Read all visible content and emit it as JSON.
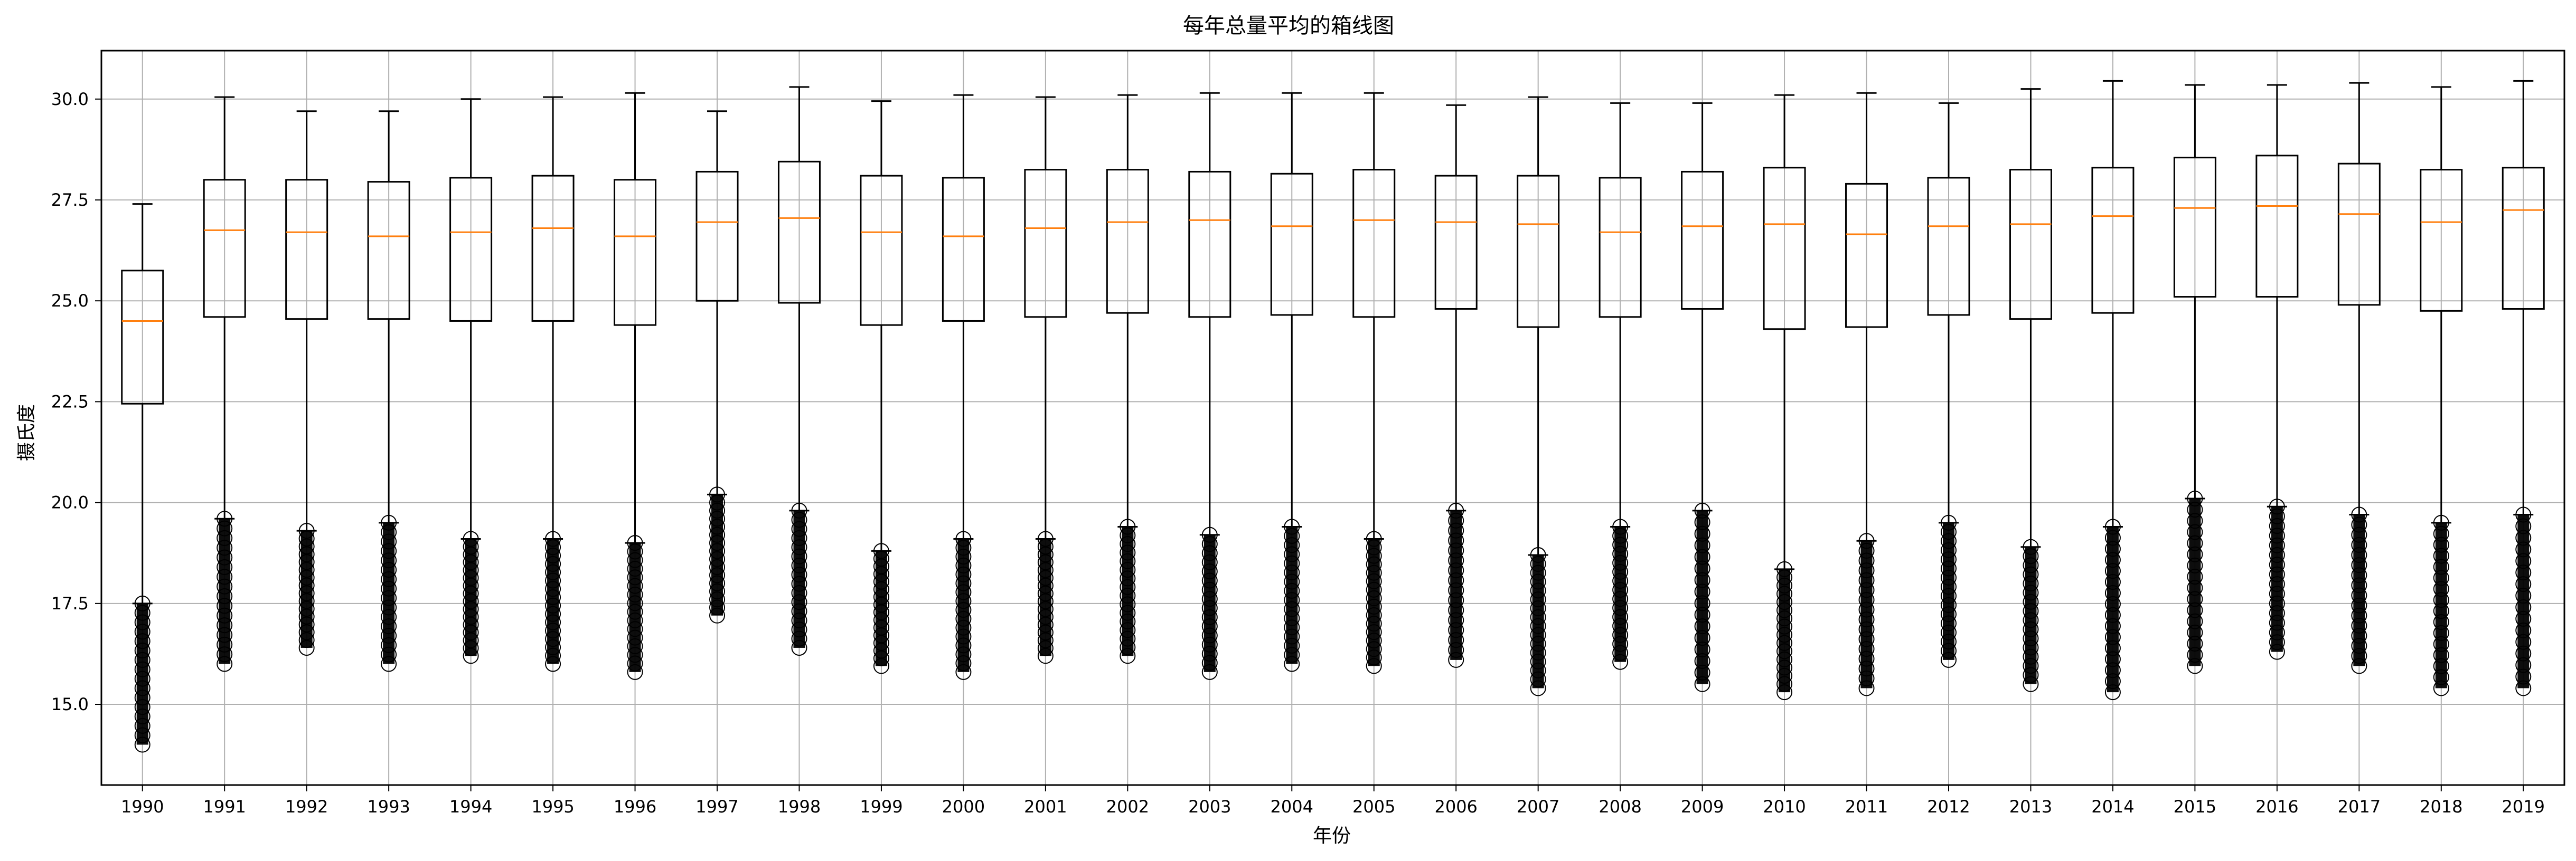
{
  "chart_data": {
    "type": "box",
    "title": "每年总量平均的箱线图",
    "xlabel": "年份",
    "ylabel": "摄氏度",
    "categories": [
      "1990",
      "1991",
      "1992",
      "1993",
      "1994",
      "1995",
      "1996",
      "1997",
      "1998",
      "1999",
      "2000",
      "2001",
      "2002",
      "2003",
      "2004",
      "2005",
      "2006",
      "2007",
      "2008",
      "2009",
      "2010",
      "2011",
      "2012",
      "2013",
      "2014",
      "2015",
      "2016",
      "2017",
      "2018",
      "2019"
    ],
    "ylim": [
      13.0,
      31.2
    ],
    "yticks": [
      15.0,
      17.5,
      20.0,
      22.5,
      25.0,
      27.5,
      30.0
    ],
    "ytick_labels": [
      "15.0",
      "17.5",
      "20.0",
      "22.5",
      "25.0",
      "27.5",
      "30.0"
    ],
    "grid": true,
    "box_color": "#000000",
    "median_color": "#ff7f0e",
    "series": [
      {
        "category": "1990",
        "whisker_low": 17.5,
        "q1": 22.45,
        "median": 24.5,
        "q3": 25.75,
        "whisker_high": 27.4,
        "outlier_low": 14.0,
        "outlier_high": 17.5
      },
      {
        "category": "1991",
        "whisker_low": 19.6,
        "q1": 24.6,
        "median": 26.75,
        "q3": 28.0,
        "whisker_high": 30.05,
        "outlier_low": 16.0,
        "outlier_high": 19.6
      },
      {
        "category": "1992",
        "whisker_low": 19.3,
        "q1": 24.55,
        "median": 26.7,
        "q3": 28.0,
        "whisker_high": 29.7,
        "outlier_low": 16.4,
        "outlier_high": 19.3
      },
      {
        "category": "1993",
        "whisker_low": 19.5,
        "q1": 24.55,
        "median": 26.6,
        "q3": 27.95,
        "whisker_high": 29.7,
        "outlier_low": 16.0,
        "outlier_high": 19.5
      },
      {
        "category": "1994",
        "whisker_low": 19.1,
        "q1": 24.5,
        "median": 26.7,
        "q3": 28.05,
        "whisker_high": 30.0,
        "outlier_low": 16.2,
        "outlier_high": 19.1
      },
      {
        "category": "1995",
        "whisker_low": 19.1,
        "q1": 24.5,
        "median": 26.8,
        "q3": 28.1,
        "whisker_high": 30.05,
        "outlier_low": 16.0,
        "outlier_high": 19.1
      },
      {
        "category": "1996",
        "whisker_low": 19.0,
        "q1": 24.4,
        "median": 26.6,
        "q3": 28.0,
        "whisker_high": 30.15,
        "outlier_low": 15.8,
        "outlier_high": 19.0
      },
      {
        "category": "1997",
        "whisker_low": 20.2,
        "q1": 25.0,
        "median": 26.95,
        "q3": 28.2,
        "whisker_high": 29.7,
        "outlier_low": 17.2,
        "outlier_high": 20.2
      },
      {
        "category": "1998",
        "whisker_low": 19.8,
        "q1": 24.95,
        "median": 27.05,
        "q3": 28.45,
        "whisker_high": 30.3,
        "outlier_low": 16.4,
        "outlier_high": 19.8
      },
      {
        "category": "1999",
        "whisker_low": 18.8,
        "q1": 24.4,
        "median": 26.7,
        "q3": 28.1,
        "whisker_high": 29.95,
        "outlier_low": 15.95,
        "outlier_high": 18.8
      },
      {
        "category": "2000",
        "whisker_low": 19.1,
        "q1": 24.5,
        "median": 26.6,
        "q3": 28.05,
        "whisker_high": 30.1,
        "outlier_low": 15.8,
        "outlier_high": 19.1
      },
      {
        "category": "2001",
        "whisker_low": 19.1,
        "q1": 24.6,
        "median": 26.8,
        "q3": 28.25,
        "whisker_high": 30.05,
        "outlier_low": 16.2,
        "outlier_high": 19.1
      },
      {
        "category": "2002",
        "whisker_low": 19.4,
        "q1": 24.7,
        "median": 26.95,
        "q3": 28.25,
        "whisker_high": 30.1,
        "outlier_low": 16.2,
        "outlier_high": 19.4
      },
      {
        "category": "2003",
        "whisker_low": 19.2,
        "q1": 24.6,
        "median": 27.0,
        "q3": 28.2,
        "whisker_high": 30.15,
        "outlier_low": 15.8,
        "outlier_high": 19.2
      },
      {
        "category": "2004",
        "whisker_low": 19.4,
        "q1": 24.65,
        "median": 26.85,
        "q3": 28.15,
        "whisker_high": 30.15,
        "outlier_low": 16.0,
        "outlier_high": 19.4
      },
      {
        "category": "2005",
        "whisker_low": 19.1,
        "q1": 24.6,
        "median": 27.0,
        "q3": 28.25,
        "whisker_high": 30.15,
        "outlier_low": 15.95,
        "outlier_high": 19.1
      },
      {
        "category": "2006",
        "whisker_low": 19.8,
        "q1": 24.8,
        "median": 26.95,
        "q3": 28.1,
        "whisker_high": 29.85,
        "outlier_low": 16.1,
        "outlier_high": 19.8
      },
      {
        "category": "2007",
        "whisker_low": 18.7,
        "q1": 24.35,
        "median": 26.9,
        "q3": 28.1,
        "whisker_high": 30.05,
        "outlier_low": 15.4,
        "outlier_high": 18.7
      },
      {
        "category": "2008",
        "whisker_low": 19.4,
        "q1": 24.6,
        "median": 26.7,
        "q3": 28.05,
        "whisker_high": 29.9,
        "outlier_low": 16.05,
        "outlier_high": 19.4
      },
      {
        "category": "2009",
        "whisker_low": 19.8,
        "q1": 24.8,
        "median": 26.85,
        "q3": 28.2,
        "whisker_high": 29.9,
        "outlier_low": 15.5,
        "outlier_high": 19.8
      },
      {
        "category": "2010",
        "whisker_low": 18.35,
        "q1": 24.3,
        "median": 26.9,
        "q3": 28.3,
        "whisker_high": 30.1,
        "outlier_low": 15.3,
        "outlier_high": 18.35
      },
      {
        "category": "2011",
        "whisker_low": 19.05,
        "q1": 24.35,
        "median": 26.65,
        "q3": 27.9,
        "whisker_high": 30.15,
        "outlier_low": 15.4,
        "outlier_high": 19.05
      },
      {
        "category": "2012",
        "whisker_low": 19.5,
        "q1": 24.65,
        "median": 26.85,
        "q3": 28.05,
        "whisker_high": 29.9,
        "outlier_low": 16.1,
        "outlier_high": 19.5
      },
      {
        "category": "2013",
        "whisker_low": 18.9,
        "q1": 24.55,
        "median": 26.9,
        "q3": 28.25,
        "whisker_high": 30.25,
        "outlier_low": 15.5,
        "outlier_high": 18.9
      },
      {
        "category": "2014",
        "whisker_low": 19.4,
        "q1": 24.7,
        "median": 27.1,
        "q3": 28.3,
        "whisker_high": 30.45,
        "outlier_low": 15.3,
        "outlier_high": 19.4
      },
      {
        "category": "2015",
        "whisker_low": 20.1,
        "q1": 25.1,
        "median": 27.3,
        "q3": 28.55,
        "whisker_high": 30.35,
        "outlier_low": 15.95,
        "outlier_high": 20.1
      },
      {
        "category": "2016",
        "whisker_low": 19.9,
        "q1": 25.1,
        "median": 27.35,
        "q3": 28.6,
        "whisker_high": 30.35,
        "outlier_low": 16.3,
        "outlier_high": 19.9
      },
      {
        "category": "2017",
        "whisker_low": 19.7,
        "q1": 24.9,
        "median": 27.15,
        "q3": 28.4,
        "whisker_high": 30.4,
        "outlier_low": 15.95,
        "outlier_high": 19.7
      },
      {
        "category": "2018",
        "whisker_low": 19.5,
        "q1": 24.75,
        "median": 26.95,
        "q3": 28.25,
        "whisker_high": 30.3,
        "outlier_low": 15.4,
        "outlier_high": 19.5
      },
      {
        "category": "2019",
        "whisker_low": 19.7,
        "q1": 24.8,
        "median": 27.25,
        "q3": 28.3,
        "whisker_high": 30.45,
        "outlier_low": 15.4,
        "outlier_high": 19.7
      }
    ]
  }
}
